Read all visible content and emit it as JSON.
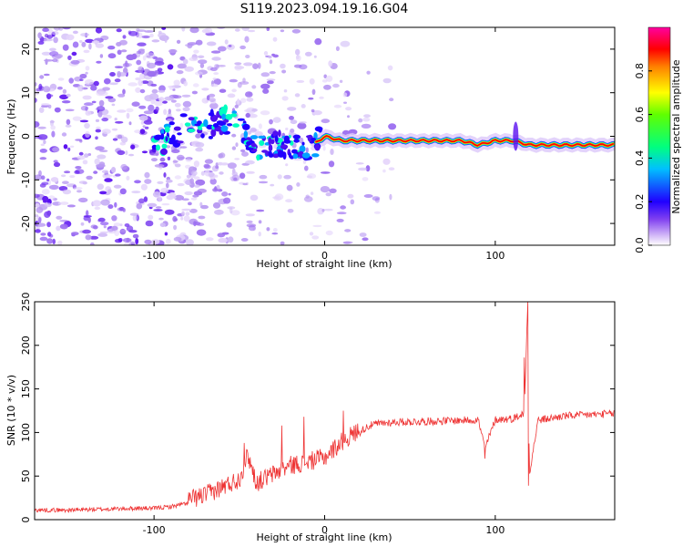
{
  "figure_title": "S119.2023.094.19.16.G04",
  "chart_data": [
    {
      "type": "heatmap",
      "title": "",
      "xlabel": "Height of straight line (km)",
      "ylabel": "Frequency (Hz)",
      "xlim": [
        -170,
        170
      ],
      "ylim": [
        -25,
        25
      ],
      "xticks": [
        -100,
        0,
        100
      ],
      "xtick_labels": [
        "-100",
        "0",
        "100"
      ],
      "yticks": [
        -20,
        -10,
        0,
        10,
        20
      ],
      "ytick_labels": [
        "-20",
        "-10",
        "0",
        "10",
        "20"
      ],
      "colorbar": {
        "label": "Normalized spectral amplitude",
        "range": [
          0.0,
          1.0
        ],
        "ticks": [
          0.0,
          0.2,
          0.4,
          0.6,
          0.8
        ],
        "tick_labels": [
          "0.0",
          "0.2",
          "0.4",
          "0.6",
          "0.8"
        ],
        "colormap": [
          "#ffffff",
          "#d8c0f8",
          "#8040f0",
          "#2000ff",
          "#00c0ff",
          "#00ff80",
          "#60ff00",
          "#ffff00",
          "#ff8000",
          "#ff0000",
          "#ff00a0"
        ]
      },
      "ridge": {
        "x": [
          -100,
          -90,
          -80,
          -70,
          -60,
          -50,
          -40,
          -30,
          -20,
          -10,
          0,
          10,
          20,
          40,
          60,
          80,
          90,
          100,
          110,
          120,
          140,
          170
        ],
        "frequency": [
          -2,
          0,
          3,
          2,
          4,
          2,
          -3,
          -2,
          -2,
          -3,
          0,
          -1,
          -1,
          -1,
          -1,
          -1,
          -2,
          -1,
          -1,
          -2,
          -2,
          -2
        ]
      },
      "grid": false
    },
    {
      "type": "line",
      "title": "",
      "xlabel": "Height of straight line (km)",
      "ylabel": "SNR (10 * v/v)",
      "xlim": [
        -170,
        170
      ],
      "ylim": [
        0,
        250
      ],
      "xticks": [
        -100,
        0,
        100
      ],
      "xtick_labels": [
        "-100",
        "0",
        "100"
      ],
      "yticks": [
        0,
        50,
        100,
        150,
        200,
        250
      ],
      "ytick_labels": [
        "0",
        "50",
        "100",
        "150",
        "200",
        "250"
      ],
      "color": "#ee3333",
      "series": [
        {
          "x": [
            -170,
            -150,
            -130,
            -110,
            -100,
            -90,
            -80,
            -70,
            -60,
            -50,
            -45,
            -40,
            -30,
            -20,
            -10,
            0,
            10,
            20,
            25,
            30,
            40,
            60,
            80,
            90,
            94,
            100,
            110,
            117,
            118,
            119,
            120,
            125,
            140,
            160,
            170
          ],
          "values": [
            10,
            10,
            11,
            12,
            12,
            14,
            18,
            24,
            33,
            42,
            70,
            38,
            48,
            58,
            62,
            67,
            85,
            98,
            105,
            108,
            110,
            111,
            112,
            113,
            80,
            113,
            114,
            120,
            180,
            250,
            50,
            112,
            117,
            119,
            120
          ]
        }
      ],
      "spikes": [
        {
          "x": -47,
          "value": 88
        },
        {
          "x": -25,
          "value": 108
        },
        {
          "x": -12,
          "value": 118
        },
        {
          "x": 11,
          "value": 125
        },
        {
          "x": 94,
          "value": 70
        },
        {
          "x": 117,
          "value": 186
        },
        {
          "x": 119,
          "value": 250
        },
        {
          "x": 119.5,
          "value": 39
        }
      ],
      "grid": false
    }
  ]
}
